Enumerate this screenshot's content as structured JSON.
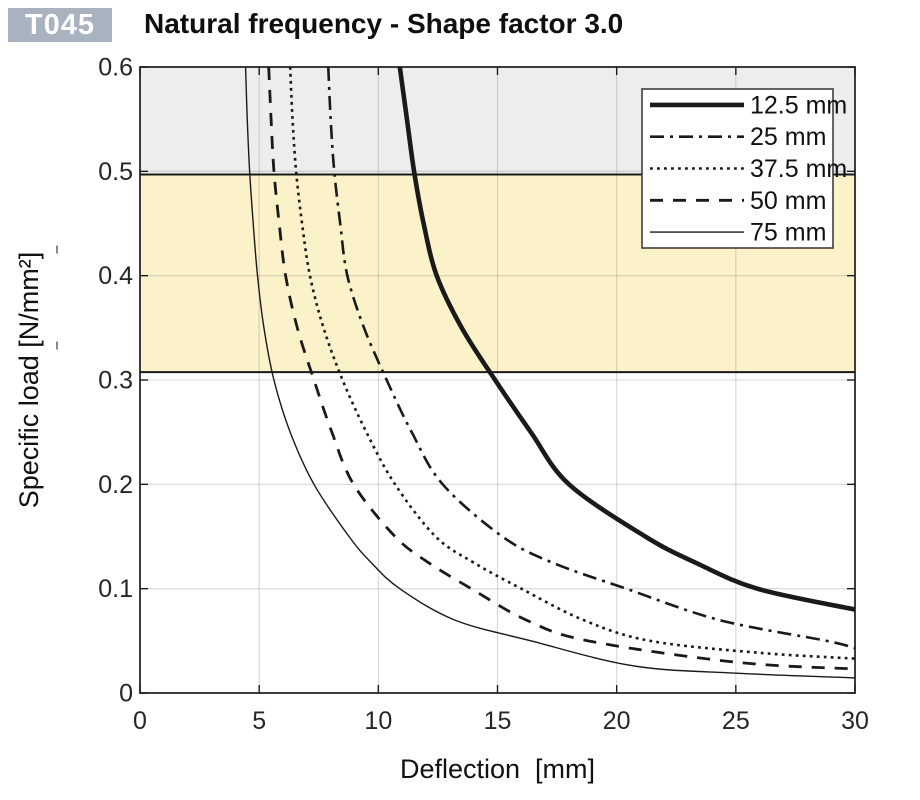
{
  "badge": "T045",
  "title": "Natural frequency - Shape factor 3.0",
  "colors": {
    "badge_background": "#a9b2bf",
    "badge_text": "#ffffff",
    "curve_color": "#1a1a1a",
    "axis_color": "#1c1c1c",
    "grid_color": "#d9d9d9",
    "upper_band_fill": "#ededed",
    "lower_band_fill": "#fbf2c9",
    "band_edge_color": "#1a1a1a",
    "legend_background": "#ffffff",
    "legend_border": "#333333",
    "text_color": "#262626"
  },
  "chart_data": {
    "type": "line",
    "title": "Natural frequency - Shape factor 3.0",
    "xlabel": "Deflection  [mm]",
    "ylabel": "Specific load [N/mm²]",
    "xlim": [
      0,
      30
    ],
    "ylim": [
      0,
      0.6
    ],
    "xticks": [
      0,
      5,
      10,
      15,
      20,
      25,
      30
    ],
    "xtick_labels": [
      "0",
      "5",
      "10",
      "15",
      "20",
      "25",
      "30"
    ],
    "yticks": [
      0,
      0.1,
      0.2,
      0.3,
      0.4,
      0.5,
      0.6
    ],
    "ytick_labels": [
      "0",
      "0.1",
      "0.2",
      "0.3",
      "0.4",
      "0.5",
      "0.6"
    ],
    "grid": true,
    "legend_position": "top-right",
    "bands": [
      {
        "name": "upper-gray-zone",
        "from": 0.497,
        "to": 0.6,
        "color": "#ededed",
        "edge_color": "#1a1a1a"
      },
      {
        "name": "recommended-load-zone",
        "from": 0.3075,
        "to": 0.497,
        "color": "#fbf2c9",
        "edge_color": "#1a1a1a"
      }
    ],
    "side_marks": [
      {
        "y": 0.425
      },
      {
        "y": 0.333
      }
    ],
    "series": [
      {
        "name": "12.5 mm",
        "line_style": "solid",
        "line_width": 4.6,
        "dash": "",
        "points": [
          [
            10.9,
            0.6
          ],
          [
            11.2,
            0.55
          ],
          [
            11.5,
            0.5
          ],
          [
            11.9,
            0.45
          ],
          [
            12.45,
            0.4
          ],
          [
            13.5,
            0.35
          ],
          [
            14.9,
            0.3
          ],
          [
            16.4,
            0.25
          ],
          [
            18.0,
            0.2
          ],
          [
            21.2,
            0.15
          ],
          [
            23.3,
            0.125
          ],
          [
            25.9,
            0.1
          ],
          [
            30,
            0.08
          ]
        ]
      },
      {
        "name": "25 mm",
        "line_style": "dash-dot",
        "line_width": 2.6,
        "dash": "14 6 3 6",
        "points": [
          [
            7.9,
            0.6
          ],
          [
            8.0,
            0.55
          ],
          [
            8.15,
            0.5
          ],
          [
            8.4,
            0.45
          ],
          [
            8.7,
            0.4
          ],
          [
            9.4,
            0.35
          ],
          [
            10.35,
            0.3
          ],
          [
            11.4,
            0.25
          ],
          [
            12.7,
            0.2
          ],
          [
            15.2,
            0.15
          ],
          [
            17.3,
            0.125
          ],
          [
            20.4,
            0.1
          ],
          [
            24.3,
            0.07
          ],
          [
            28.8,
            0.05
          ],
          [
            30,
            0.043
          ]
        ]
      },
      {
        "name": "37.5 mm",
        "line_style": "dotted",
        "line_width": 2.6,
        "dash": "2.8 4.2",
        "points": [
          [
            6.3,
            0.6
          ],
          [
            6.4,
            0.55
          ],
          [
            6.55,
            0.5
          ],
          [
            6.8,
            0.45
          ],
          [
            7.13,
            0.4
          ],
          [
            7.7,
            0.35
          ],
          [
            8.5,
            0.3
          ],
          [
            9.5,
            0.25
          ],
          [
            10.7,
            0.2
          ],
          [
            12.4,
            0.15
          ],
          [
            14.0,
            0.125
          ],
          [
            16.0,
            0.1
          ],
          [
            18.6,
            0.07
          ],
          [
            21.4,
            0.05
          ],
          [
            26,
            0.0385
          ],
          [
            30,
            0.033
          ]
        ]
      },
      {
        "name": "50 mm",
        "line_style": "dashed",
        "line_width": 2.8,
        "dash": "13 10",
        "points": [
          [
            5.4,
            0.6
          ],
          [
            5.5,
            0.55
          ],
          [
            5.62,
            0.5
          ],
          [
            5.84,
            0.45
          ],
          [
            6.11,
            0.4
          ],
          [
            6.6,
            0.35
          ],
          [
            7.3,
            0.3
          ],
          [
            8.05,
            0.25
          ],
          [
            8.96,
            0.2
          ],
          [
            10.7,
            0.15
          ],
          [
            12.1,
            0.125
          ],
          [
            13.9,
            0.1
          ],
          [
            16.2,
            0.07
          ],
          [
            18.8,
            0.05
          ],
          [
            25,
            0.0295
          ],
          [
            30,
            0.023
          ]
        ]
      },
      {
        "name": "75 mm",
        "line_style": "solid",
        "line_width": 1.4,
        "dash": "",
        "points": [
          [
            4.43,
            0.6
          ],
          [
            4.5,
            0.55
          ],
          [
            4.6,
            0.5
          ],
          [
            4.75,
            0.45
          ],
          [
            4.93,
            0.4
          ],
          [
            5.2,
            0.35
          ],
          [
            5.62,
            0.3
          ],
          [
            6.3,
            0.25
          ],
          [
            7.3,
            0.2
          ],
          [
            8.77,
            0.15
          ],
          [
            9.7,
            0.125
          ],
          [
            10.9,
            0.1
          ],
          [
            13.2,
            0.07
          ],
          [
            16.4,
            0.05
          ],
          [
            20.7,
            0.026
          ],
          [
            25,
            0.019
          ],
          [
            30,
            0.0145
          ]
        ]
      }
    ]
  }
}
